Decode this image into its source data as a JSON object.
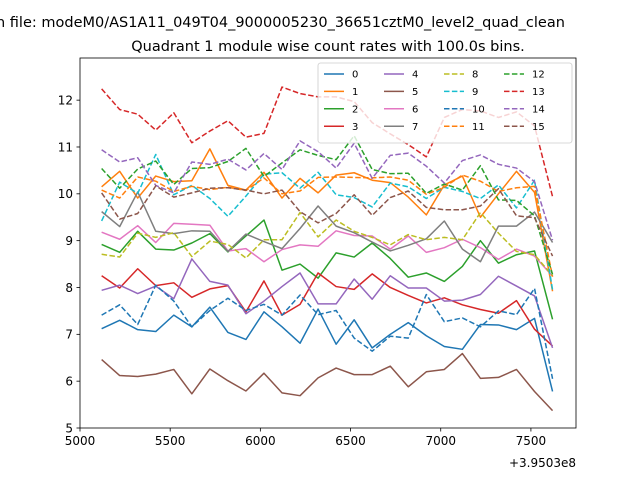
{
  "chart_data": {
    "type": "line",
    "suptitle": "n file: modeM0/AS1A11_049T04_9000005230_36651cztM0_level2_quad_clean",
    "title": "Quadrant 1 module wise count rates with 100.0s bins.",
    "xlabel": "",
    "ylabel": "",
    "offset_label": "+3.9503e8",
    "xlim": [
      5000,
      7750
    ],
    "ylim": [
      5,
      12.9
    ],
    "xticks": [
      5000,
      5500,
      6000,
      6500,
      7000,
      7500
    ],
    "xtick_labels": [
      "5000",
      "5500",
      "6000",
      "6500",
      "7000",
      "7500"
    ],
    "yticks": [
      5,
      6,
      7,
      8,
      9,
      10,
      11,
      12
    ],
    "ytick_labels": [
      "5",
      "6",
      "7",
      "8",
      "9",
      "10",
      "11",
      "12"
    ],
    "legend_position": "top-right",
    "x": [
      5120,
      5220,
      5320,
      5420,
      5520,
      5620,
      5720,
      5820,
      5920,
      6020,
      6120,
      6220,
      6320,
      6420,
      6520,
      6620,
      6720,
      6820,
      6920,
      7020,
      7120,
      7220,
      7320,
      7420,
      7520,
      7620
    ],
    "series": [
      {
        "name": "0",
        "color": "#1f77b4",
        "dash": "solid",
        "values": [
          7.12,
          7.3,
          7.1,
          7.06,
          7.41,
          7.16,
          7.58,
          7.04,
          6.89,
          7.48,
          7.16,
          6.81,
          7.54,
          6.79,
          7.31,
          6.71,
          7.0,
          7.25,
          6.97,
          6.74,
          6.68,
          7.21,
          7.2,
          7.1,
          7.34,
          5.78
        ]
      },
      {
        "name": "1",
        "color": "#ff7f0e",
        "dash": "solid",
        "values": [
          10.15,
          10.48,
          9.91,
          10.38,
          10.26,
          10.28,
          10.96,
          10.18,
          10.08,
          10.46,
          9.91,
          10.33,
          10.02,
          10.4,
          10.45,
          10.29,
          10.24,
          9.93,
          9.55,
          10.19,
          10.38,
          9.5,
          10.0,
          10.48,
          10.03,
          7.92
        ]
      },
      {
        "name": "2",
        "color": "#2ca02c",
        "dash": "solid",
        "values": [
          8.92,
          8.75,
          9.2,
          8.82,
          8.8,
          8.95,
          9.15,
          8.76,
          9.1,
          9.44,
          8.37,
          8.5,
          8.2,
          8.74,
          8.65,
          8.95,
          8.62,
          8.22,
          8.31,
          8.13,
          8.45,
          9.0,
          8.52,
          8.7,
          8.78,
          7.32
        ]
      },
      {
        "name": "3",
        "color": "#d62728",
        "dash": "solid",
        "values": [
          8.25,
          7.99,
          8.4,
          8.04,
          8.1,
          7.79,
          7.97,
          8.04,
          7.48,
          8.14,
          7.41,
          7.64,
          8.31,
          8.02,
          7.96,
          8.29,
          8.0,
          7.83,
          7.67,
          7.78,
          7.63,
          7.53,
          7.45,
          7.72,
          7.11,
          6.75
        ]
      },
      {
        "name": "4",
        "color": "#9467bd",
        "dash": "solid",
        "values": [
          7.94,
          8.05,
          7.87,
          8.03,
          7.76,
          8.61,
          8.13,
          8.05,
          7.44,
          7.71,
          8.02,
          8.31,
          7.65,
          7.65,
          8.18,
          7.75,
          8.25,
          7.99,
          7.99,
          7.71,
          7.73,
          7.85,
          8.24,
          8.03,
          7.82,
          6.71
        ]
      },
      {
        "name": "5",
        "color": "#8c564b",
        "dash": "solid",
        "values": [
          6.46,
          6.12,
          6.1,
          6.15,
          6.25,
          5.73,
          6.26,
          6.01,
          5.79,
          6.17,
          5.75,
          5.69,
          6.07,
          6.28,
          6.14,
          6.14,
          6.32,
          5.88,
          6.2,
          6.25,
          6.59,
          6.06,
          6.08,
          6.25,
          5.78,
          5.37
        ]
      },
      {
        "name": "6",
        "color": "#e377c2",
        "dash": "solid",
        "values": [
          9.18,
          9.03,
          9.32,
          8.96,
          9.37,
          9.35,
          9.33,
          8.78,
          8.83,
          8.55,
          8.81,
          8.91,
          8.88,
          9.21,
          9.11,
          9.1,
          8.82,
          9.1,
          8.75,
          8.85,
          9.03,
          8.85,
          8.6,
          8.82,
          8.67,
          8.24
        ]
      },
      {
        "name": "7",
        "color": "#7f7f7f",
        "dash": "solid",
        "values": [
          9.62,
          9.3,
          10.04,
          9.2,
          9.15,
          9.21,
          9.2,
          8.77,
          9.14,
          8.98,
          8.83,
          9.26,
          9.74,
          9.31,
          9.17,
          8.97,
          8.78,
          8.9,
          9.04,
          9.42,
          8.82,
          8.55,
          9.31,
          9.31,
          9.61,
          8.96
        ]
      },
      {
        "name": "8",
        "color": "#bcbd22",
        "dash": "dashed",
        "values": [
          8.71,
          8.65,
          9.16,
          9.07,
          9.17,
          8.66,
          8.99,
          8.92,
          8.63,
          9.02,
          9.02,
          9.6,
          9.08,
          9.44,
          9.2,
          9.07,
          8.91,
          9.13,
          9.02,
          9.07,
          9.02,
          9.6,
          9.16,
          8.77,
          8.7,
          8.25
        ]
      },
      {
        "name": "9",
        "color": "#17becf",
        "dash": "dashed",
        "values": [
          9.42,
          10.25,
          10.01,
          10.84,
          9.98,
          10.18,
          9.9,
          9.52,
          9.95,
          10.42,
          10.45,
          10.12,
          10.46,
          9.98,
          9.92,
          9.72,
          10.23,
          10.15,
          9.9,
          10.14,
          10.05,
          9.9,
          10.19,
          9.7,
          10.29,
          7.95
        ]
      },
      {
        "name": "10",
        "color": "#1f77b4",
        "dash": "dashed",
        "values": [
          7.41,
          7.63,
          7.21,
          8.05,
          7.71,
          7.16,
          7.51,
          7.77,
          7.51,
          7.64,
          7.41,
          7.84,
          7.42,
          7.51,
          6.92,
          6.64,
          6.96,
          6.92,
          7.85,
          7.27,
          7.35,
          7.16,
          7.5,
          7.42,
          7.98,
          6.05
        ]
      },
      {
        "name": "11",
        "color": "#ff7f0e",
        "dash": "dashed",
        "values": [
          10.08,
          9.91,
          10.36,
          10.27,
          10.05,
          10.16,
          10.09,
          10.14,
          10.07,
          10.34,
          10.0,
          10.06,
          10.35,
          10.36,
          10.35,
          10.34,
          10.36,
          10.29,
          9.99,
          10.14,
          10.4,
          10.27,
          10.05,
          10.13,
          10.16,
          8.23
        ]
      },
      {
        "name": "12",
        "color": "#2ca02c",
        "dash": "dashed",
        "values": [
          10.54,
          10.12,
          10.53,
          10.7,
          10.2,
          10.54,
          10.56,
          10.69,
          10.97,
          10.37,
          10.66,
          10.94,
          10.82,
          10.73,
          11.24,
          10.52,
          10.43,
          10.44,
          10.01,
          10.21,
          10.08,
          10.6,
          9.87,
          9.86,
          9.53,
          8.28
        ]
      },
      {
        "name": "13",
        "color": "#d62728",
        "dash": "dashed",
        "values": [
          12.24,
          11.8,
          11.7,
          11.36,
          11.73,
          11.09,
          11.34,
          11.56,
          11.21,
          11.29,
          12.28,
          12.14,
          12.07,
          12.07,
          11.97,
          11.52,
          11.28,
          11.05,
          10.79,
          11.63,
          11.8,
          11.77,
          11.63,
          11.75,
          11.45,
          9.94
        ]
      },
      {
        "name": "14",
        "color": "#9467bd",
        "dash": "dashed",
        "values": [
          10.94,
          10.68,
          10.77,
          10.18,
          10.02,
          10.68,
          10.63,
          10.74,
          10.51,
          10.86,
          10.52,
          11.13,
          10.9,
          10.55,
          11.08,
          10.33,
          10.82,
          10.87,
          10.59,
          10.23,
          10.71,
          10.83,
          10.63,
          10.55,
          10.26,
          9.01
        ]
      },
      {
        "name": "15",
        "color": "#8c564b",
        "dash": "dashed",
        "values": [
          10.02,
          9.46,
          9.58,
          10.17,
          9.93,
          10.02,
          10.12,
          10.13,
          10.08,
          10.0,
          10.08,
          9.62,
          9.38,
          9.58,
          9.98,
          9.54,
          9.92,
          10.06,
          9.71,
          9.66,
          9.66,
          9.74,
          10.11,
          9.53,
          9.49,
          8.67
        ]
      }
    ]
  }
}
